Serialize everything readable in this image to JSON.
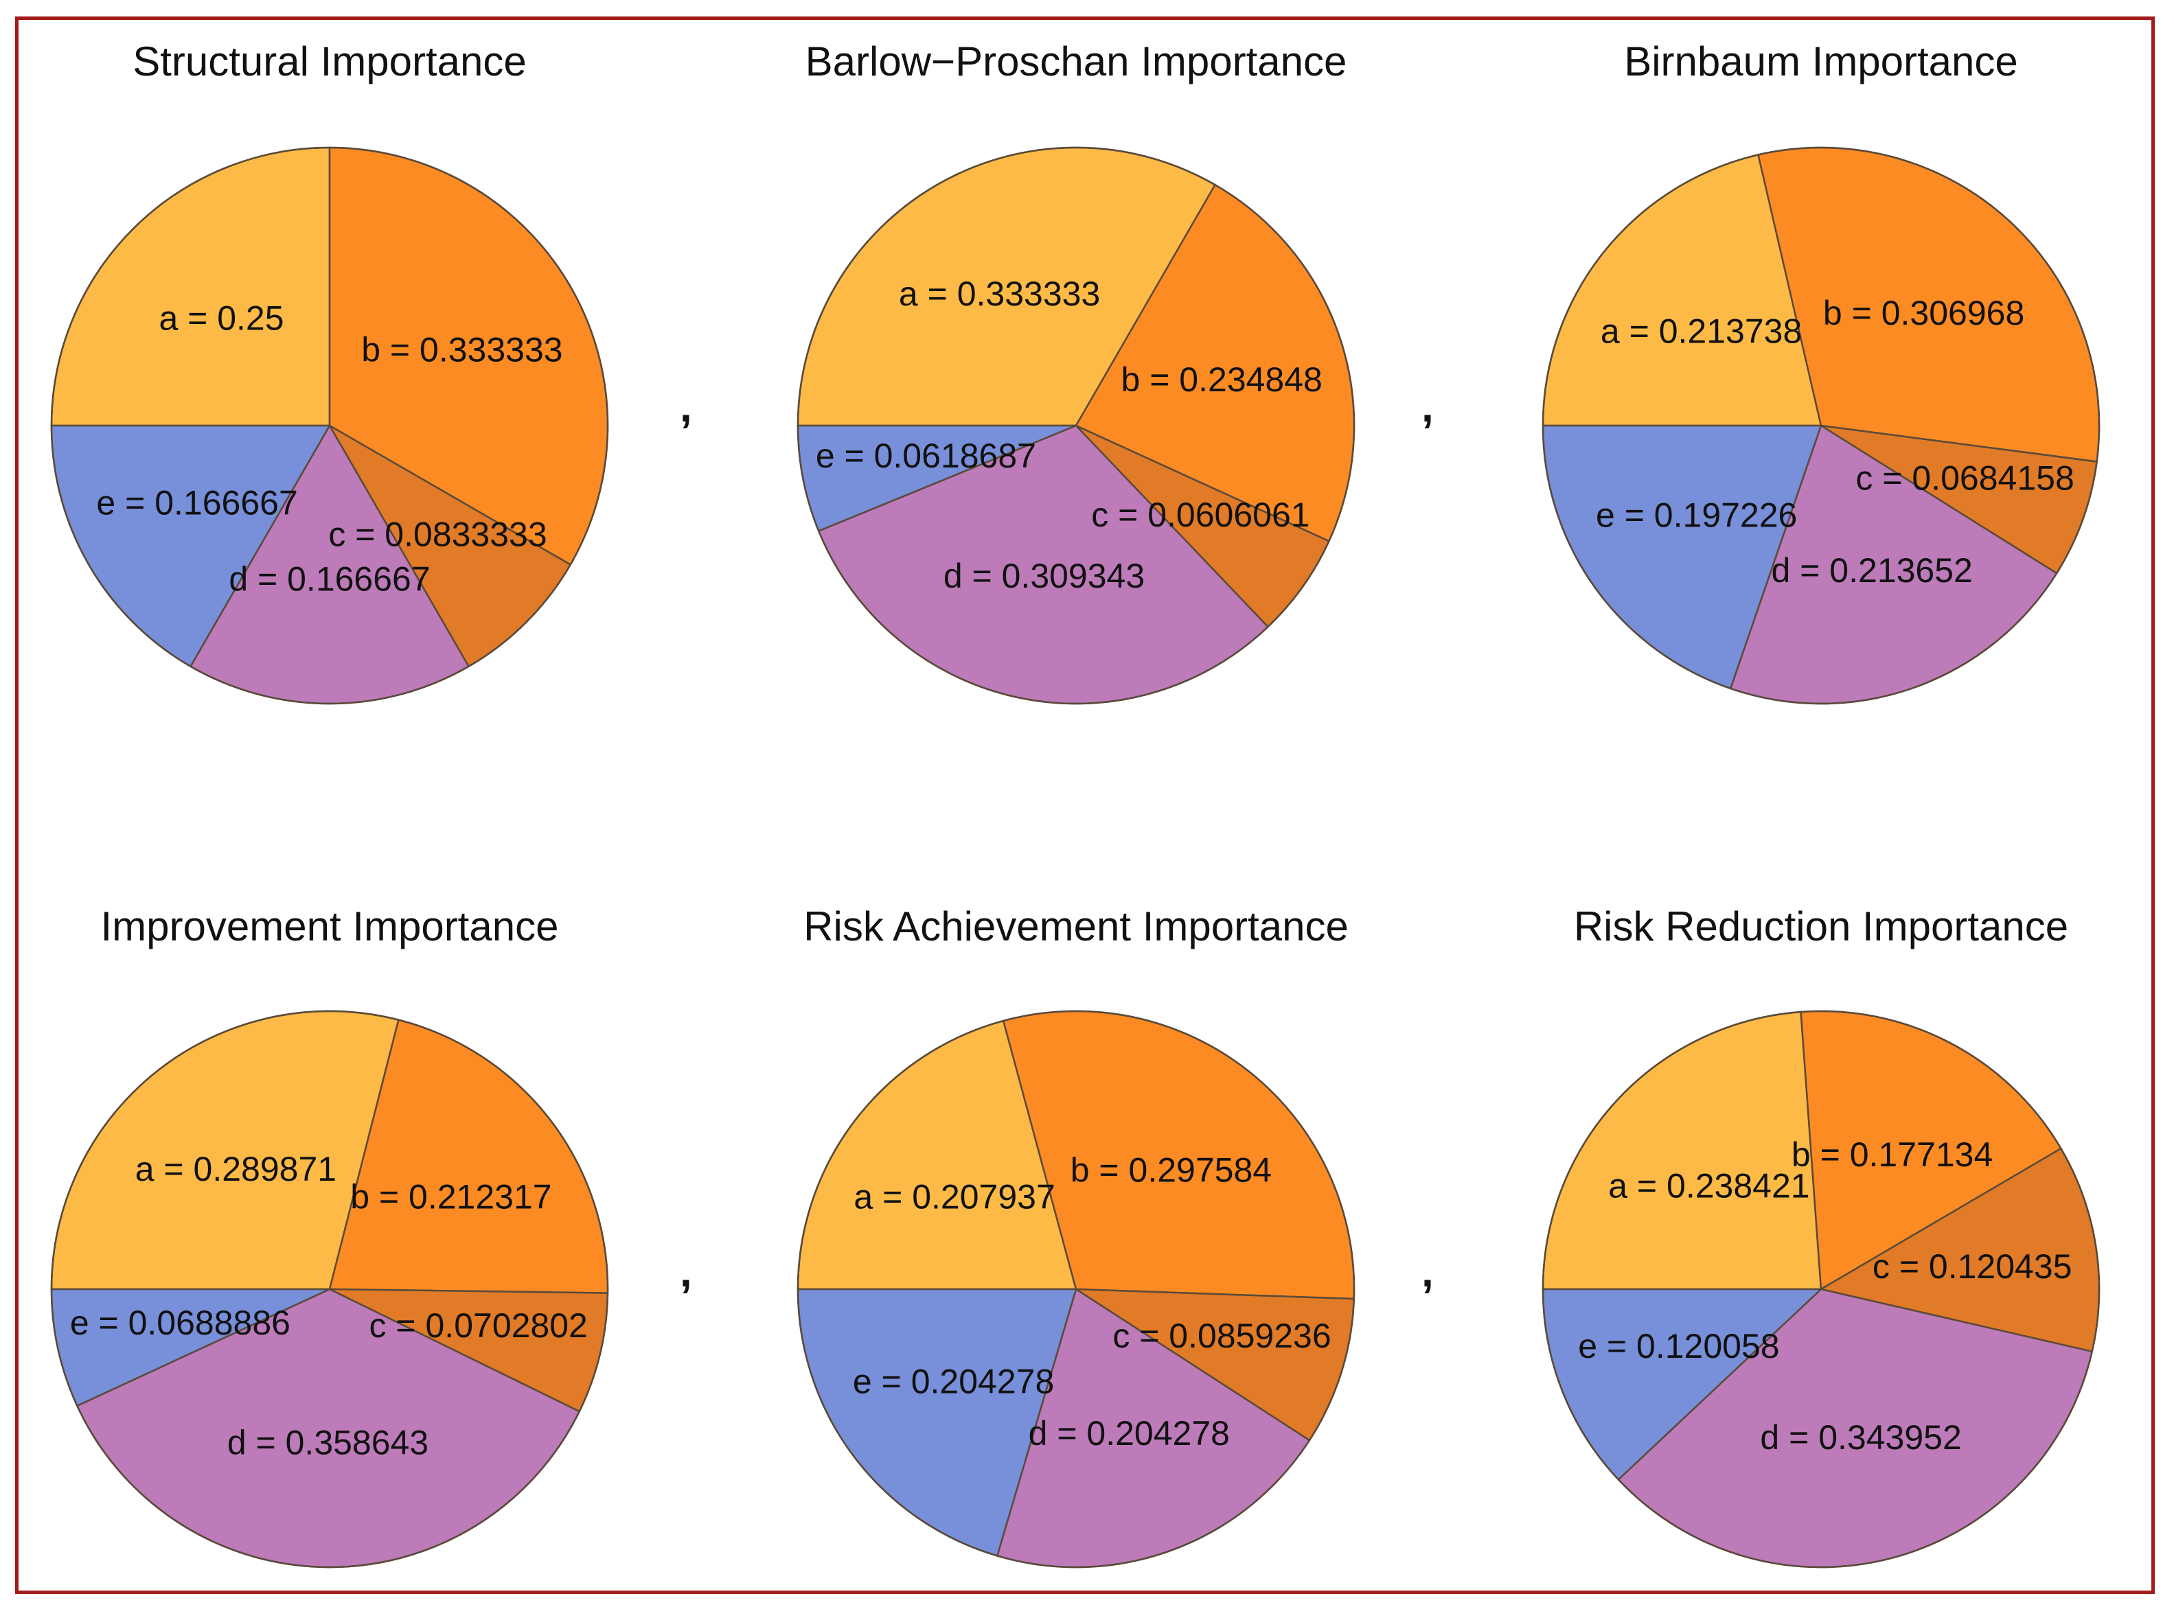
{
  "separator": ",",
  "colors": {
    "a": "#fdba46",
    "b": "#fd8b24",
    "c": "#e17b27",
    "d": "#bd7bba",
    "e": "#788fd9",
    "frame": "#a31c1c",
    "edge": "#5a4a3a"
  },
  "chart_data": [
    {
      "type": "pie",
      "title": "Structural Importance",
      "labels": [
        "a",
        "b",
        "c",
        "d",
        "e"
      ],
      "values": [
        0.25,
        0.333333,
        0.0833333,
        0.166667,
        0.166667
      ],
      "value_labels": [
        "a = 0.25",
        "b = 0.333333",
        "c = 0.0833333",
        "d = 0.166667",
        "e = 0.166667"
      ],
      "start_angle_deg": 180,
      "direction": "clockwise"
    },
    {
      "type": "pie",
      "title": "Barlow−Proschan Importance",
      "labels": [
        "a",
        "b",
        "c",
        "d",
        "e"
      ],
      "values": [
        0.333333,
        0.234848,
        0.0606061,
        0.309343,
        0.0618687
      ],
      "value_labels": [
        "a = 0.333333",
        "b = 0.234848",
        "c = 0.0606061",
        "d = 0.309343",
        "e = 0.0618687"
      ],
      "start_angle_deg": 180,
      "direction": "clockwise"
    },
    {
      "type": "pie",
      "title": "Birnbaum Importance",
      "labels": [
        "a",
        "b",
        "c",
        "d",
        "e"
      ],
      "values": [
        0.213738,
        0.306968,
        0.0684158,
        0.213652,
        0.197226
      ],
      "value_labels": [
        "a = 0.213738",
        "b = 0.306968",
        "c = 0.0684158",
        "d = 0.213652",
        "e = 0.197226"
      ],
      "start_angle_deg": 180,
      "direction": "clockwise"
    },
    {
      "type": "pie",
      "title": "Improvement Importance",
      "labels": [
        "a",
        "b",
        "c",
        "d",
        "e"
      ],
      "values": [
        0.289871,
        0.212317,
        0.0702802,
        0.358643,
        0.0688886
      ],
      "value_labels": [
        "a = 0.289871",
        "b = 0.212317",
        "c = 0.0702802",
        "d = 0.358643",
        "e = 0.0688886"
      ],
      "start_angle_deg": 180,
      "direction": "clockwise"
    },
    {
      "type": "pie",
      "title": "Risk Achievement Importance",
      "labels": [
        "a",
        "b",
        "c",
        "d",
        "e"
      ],
      "values": [
        0.207937,
        0.297584,
        0.0859236,
        0.204278,
        0.204278
      ],
      "value_labels": [
        "a = 0.207937",
        "b = 0.297584",
        "c = 0.0859236",
        "d = 0.204278",
        "e = 0.204278"
      ],
      "start_angle_deg": 180,
      "direction": "clockwise"
    },
    {
      "type": "pie",
      "title": "Risk Reduction Importance",
      "labels": [
        "a",
        "b",
        "c",
        "d",
        "e"
      ],
      "values": [
        0.238421,
        0.177134,
        0.120435,
        0.343952,
        0.120058
      ],
      "value_labels": [
        "a = 0.238421",
        "b = 0.177134",
        "c = 0.120435",
        "d = 0.343952",
        "e = 0.120058"
      ],
      "start_angle_deg": 180,
      "direction": "clockwise"
    }
  ]
}
